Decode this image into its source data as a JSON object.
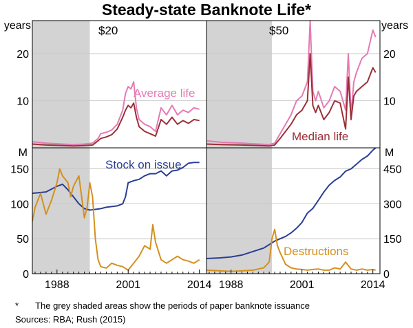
{
  "chart_data": {
    "type": "line",
    "title": "Steady-state Banknote Life*",
    "footnote_marker": "*",
    "footnote": "The grey shaded areas show the periods of paper banknote issuance",
    "sources": "Sources:   RBA; Rush (2015)",
    "x_range": [
      1983.5,
      2015.3
    ],
    "x_tick_labels": [
      "1988",
      "2001",
      "2014"
    ],
    "colors": {
      "average_life": "#e57ab4",
      "median_life": "#9b2f37",
      "stock_on_issue": "#2a3d95",
      "destructions": "#d4901e",
      "shade": "#d3d3d3",
      "grid": "#c8c8c8"
    },
    "panels": [
      {
        "id": "top-left",
        "label": "$20",
        "y_unit": "years",
        "ylim": [
          0,
          27
        ],
        "y_ticks": [
          10,
          20
        ],
        "shade": [
          1983.5,
          1994
        ],
        "series": [
          {
            "name": "Average life",
            "key": "average_life",
            "show_label": true,
            "x": [
              1983.5,
              1986,
              1989,
              1991,
              1993,
              1994.5,
              1995.5,
              1996,
              1997,
              1998,
              1999,
              2000,
              2000.5,
              2001,
              2001.5,
              2002,
              2002.5,
              2003,
              2004,
              2005,
              2006,
              2007,
              2008,
              2009,
              2010,
              2011,
              2012,
              2013,
              2014
            ],
            "y": [
              1.3,
              1.0,
              0.8,
              0.7,
              0.8,
              1.0,
              2.0,
              3.0,
              3.3,
              3.8,
              5.0,
              8.0,
              11.5,
              13.0,
              12.5,
              14.0,
              8.5,
              6.0,
              5.0,
              4.5,
              3.5,
              8.5,
              7.0,
              9.0,
              7.0,
              8.0,
              7.5,
              8.5,
              8.2
            ]
          },
          {
            "name": "Median life",
            "key": "median_life",
            "show_label": false,
            "x": [
              1983.5,
              1986,
              1989,
              1991,
              1993,
              1994.5,
              1995.5,
              1996,
              1997,
              1998,
              1999,
              2000,
              2000.5,
              2001,
              2001.5,
              2002,
              2002.5,
              2003,
              2004,
              2005,
              2006,
              2007,
              2008,
              2009,
              2010,
              2011,
              2012,
              2013,
              2014
            ],
            "y": [
              0.8,
              0.6,
              0.5,
              0.4,
              0.5,
              0.6,
              1.5,
              2.0,
              2.3,
              2.8,
              4.0,
              6.5,
              8.0,
              9.0,
              8.5,
              9.5,
              6.5,
              4.5,
              3.5,
              3.0,
              2.5,
              6.0,
              5.0,
              6.5,
              5.0,
              5.8,
              5.2,
              6.0,
              5.8
            ]
          }
        ]
      },
      {
        "id": "top-right",
        "label": "$50",
        "y_unit": "years",
        "ylim": [
          0,
          27
        ],
        "y_ticks": [
          10,
          20
        ],
        "shade": [
          1983.5,
          1995.5
        ],
        "series": [
          {
            "name": "Average life",
            "key": "average_life",
            "show_label": false,
            "x": [
              1983.5,
              1986,
              1990,
              1993,
              1995,
              1996,
              1997,
              1998,
              1999,
              2000,
              2001,
              2002,
              2002.5,
              2003,
              2003.5,
              2004,
              2005,
              2006,
              2007,
              2008,
              2009,
              2009.5,
              2010,
              2010.5,
              2011,
              2012,
              2013,
              2014,
              2014.5
            ],
            "y": [
              1.5,
              1.2,
              1.0,
              0.8,
              0.7,
              1.0,
              3.0,
              5.0,
              7.0,
              10.0,
              11.0,
              14.0,
              27.0,
              12.0,
              10.0,
              12.0,
              8.5,
              10.0,
              13.0,
              12.0,
              8.0,
              20.0,
              7.0,
              14.0,
              16.0,
              19.0,
              20.0,
              25.0,
              23.5
            ]
          },
          {
            "name": "Median life",
            "key": "median_life",
            "show_label": true,
            "x": [
              1983.5,
              1986,
              1990,
              1993,
              1995,
              1996,
              1997,
              1998,
              1999,
              2000,
              2001,
              2002,
              2002.5,
              2003,
              2003.5,
              2004,
              2005,
              2006,
              2007,
              2008,
              2009,
              2009.5,
              2010,
              2010.5,
              2011,
              2012,
              2013,
              2014,
              2014.5
            ],
            "y": [
              0.8,
              0.7,
              0.6,
              0.5,
              0.4,
              0.6,
              2.0,
              3.5,
              5.0,
              7.0,
              8.0,
              10.0,
              20.0,
              9.0,
              7.5,
              9.0,
              6.0,
              7.5,
              10.0,
              9.5,
              4.0,
              15.0,
              6.0,
              11.0,
              12.0,
              13.0,
              14.0,
              17.0,
              16.0
            ]
          }
        ]
      },
      {
        "id": "bottom-left",
        "y_unit": "M",
        "ylim": [
          0,
          180
        ],
        "y_ticks": [
          50,
          100,
          150
        ],
        "shade": [
          1983.5,
          1994
        ],
        "series": [
          {
            "name": "Stock on issue",
            "key": "stock_on_issue",
            "show_label": true,
            "x": [
              1983.5,
              1986,
              1988,
              1989,
              1990,
              1991,
              1992,
              1993,
              1994,
              1995,
              1996,
              1997,
              1998,
              1999,
              2000,
              2000.5,
              2001,
              2002,
              2003,
              2004,
              2005,
              2006,
              2007,
              2008,
              2009,
              2010,
              2011,
              2012,
              2013,
              2014
            ],
            "y": [
              115,
              117,
              125,
              128,
              120,
              110,
              100,
              93,
              91,
              92,
              93,
              95,
              96,
              97,
              100,
              110,
              130,
              133,
              135,
              140,
              143,
              143,
              147,
              140,
              147,
              148,
              152,
              158,
              159,
              159
            ]
          },
          {
            "name": "Destructions",
            "key": "destructions",
            "show_label": false,
            "x": [
              1983.5,
              1984,
              1985,
              1986,
              1987,
              1988,
              1988.5,
              1989,
              1990,
              1990.5,
              1991,
              1992,
              1993,
              1993.5,
              1994,
              1994.5,
              1995,
              1995.5,
              1996,
              1997,
              1998,
              1999,
              2000,
              2001,
              2002,
              2003,
              2004,
              2005,
              2005.5,
              2006,
              2007,
              2008,
              2009,
              2010,
              2011,
              2012,
              2013,
              2014
            ],
            "y": [
              75,
              95,
              115,
              85,
              105,
              130,
              150,
              140,
              130,
              110,
              125,
              140,
              80,
              95,
              130,
              110,
              50,
              20,
              10,
              8,
              15,
              12,
              10,
              5,
              15,
              25,
              40,
              35,
              70,
              45,
              20,
              15,
              20,
              25,
              20,
              18,
              15,
              20
            ]
          }
        ]
      },
      {
        "id": "bottom-right",
        "y_unit": "M",
        "ylim": [
          0,
          540
        ],
        "y_ticks": [
          150,
          300,
          450
        ],
        "shade": [
          1983.5,
          1995.5
        ],
        "series": [
          {
            "name": "Stock on issue",
            "key": "stock_on_issue",
            "show_label": false,
            "x": [
              1983.5,
              1986,
              1988,
              1990,
              1992,
              1994,
              1996,
              1998,
              1999,
              2000,
              2001,
              2002,
              2003,
              2004,
              2005,
              2006,
              2007,
              2008,
              2009,
              2010,
              2011,
              2012,
              2013,
              2014,
              2014.5
            ],
            "y": [
              65,
              68,
              72,
              80,
              95,
              110,
              140,
              160,
              175,
              195,
              220,
              260,
              280,
              315,
              350,
              380,
              400,
              415,
              440,
              450,
              470,
              490,
              505,
              530,
              540
            ]
          },
          {
            "name": "Destructions",
            "key": "destructions",
            "show_label": true,
            "x": [
              1983.5,
              1986,
              1988,
              1990,
              1992,
              1993,
              1994,
              1995,
              1995.5,
              1996,
              1996.5,
              1997,
              1998,
              1999,
              2000,
              2001,
              2002,
              2003,
              2004,
              2005,
              2006,
              2007,
              2008,
              2009,
              2010,
              2011,
              2012,
              2013,
              2014,
              2014.5
            ],
            "y": [
              15,
              12,
              10,
              12,
              15,
              20,
              25,
              50,
              150,
              190,
              120,
              90,
              40,
              25,
              20,
              18,
              15,
              18,
              20,
              15,
              15,
              25,
              20,
              50,
              20,
              15,
              20,
              15,
              18,
              15
            ]
          }
        ]
      }
    ]
  }
}
